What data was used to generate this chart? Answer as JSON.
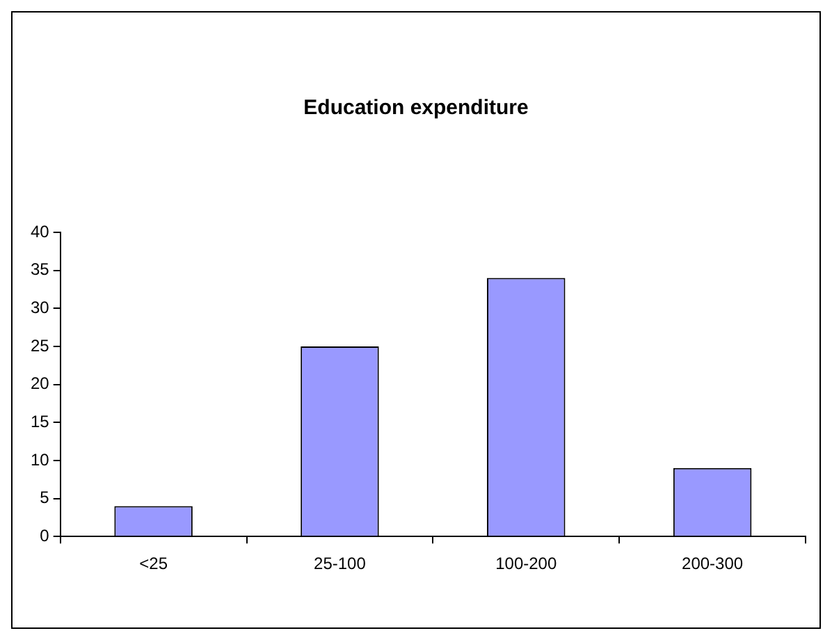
{
  "chart_data": {
    "type": "bar",
    "title": "Education expenditure",
    "categories": [
      "<25",
      "25-100",
      "100-200",
      "200-300"
    ],
    "values": [
      4,
      25,
      34,
      9
    ],
    "color": "#9999ff",
    "ylim": [
      0,
      40
    ],
    "yticks": [
      0,
      5,
      10,
      15,
      20,
      25,
      30,
      35,
      40
    ],
    "grid": false,
    "legend": false
  }
}
